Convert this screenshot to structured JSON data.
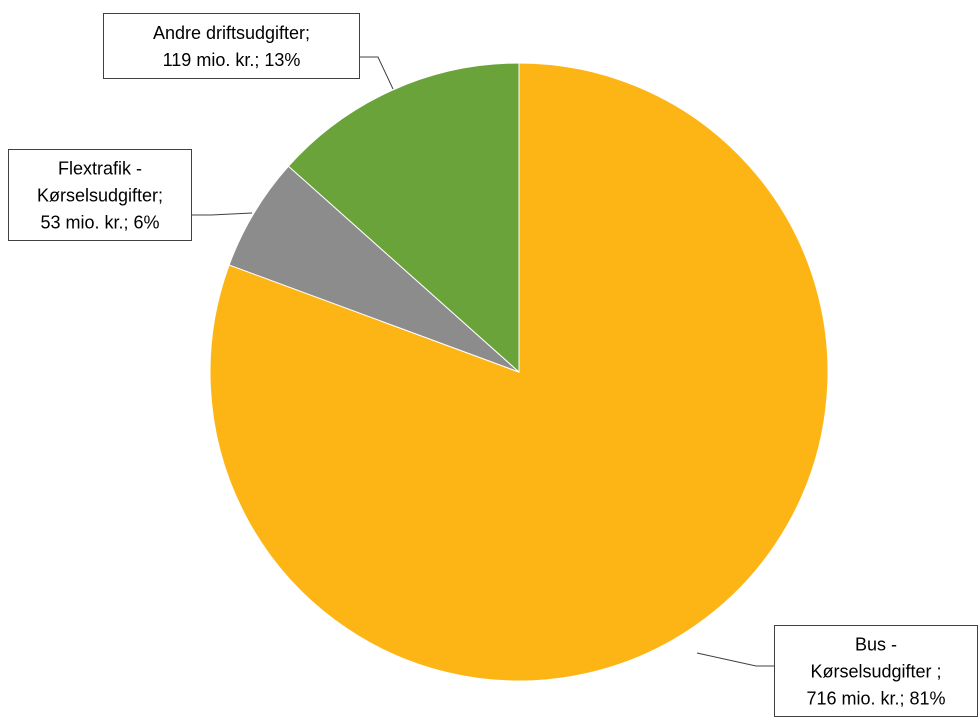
{
  "chart_data": {
    "type": "pie",
    "colors": [
      "#FDB515",
      "#8C8C8C",
      "#69A33A"
    ],
    "slices": [
      {
        "category": "Bus - Kørselsudgifter",
        "value": 716,
        "percent": 81,
        "label_lines": [
          "Bus -",
          "Kørselsudgifter ;",
          "716 mio. kr.; 81%"
        ]
      },
      {
        "category": "Flextrafik - Kørselsudgifter",
        "value": 53,
        "percent": 6,
        "label_lines": [
          "Flextrafik -",
          "Kørselsudgifter;",
          "53 mio. kr.; 6%"
        ]
      },
      {
        "category": "Andre driftsudgifter",
        "value": 119,
        "percent": 13,
        "label_lines": [
          "Andre driftsudgifter;",
          "119 mio. kr.; 13%"
        ]
      }
    ]
  }
}
